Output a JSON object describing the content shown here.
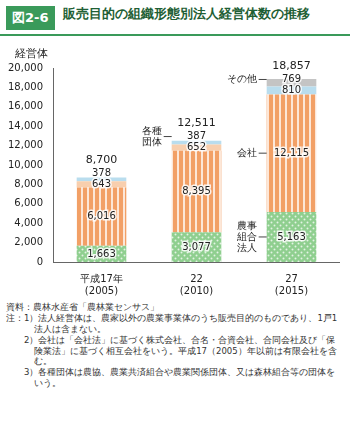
{
  "chart_data": {
    "type": "bar",
    "figure_label": "図2-6",
    "title": "販売目的の組織形態別法人経営体数の推移",
    "y_label": "経営体",
    "categories": [
      "平成17年\n(2005)",
      "22\n(2010)",
      "27\n(2015)"
    ],
    "stacked": true,
    "grid": false,
    "data_labels": true,
    "series": [
      {
        "name": "農事組合法人",
        "color": "#8fcf8f",
        "values": [
          1663,
          3077,
          5163
        ],
        "value_labels": [
          "1,663",
          "3,077",
          "5,163"
        ]
      },
      {
        "name": "会社",
        "color": "#f2a066",
        "values": [
          6016,
          8395,
          12115
        ],
        "value_labels": [
          "6,016",
          "8,395",
          "12,115"
        ]
      },
      {
        "name": "各種団体",
        "colors": [
          "#f8cfae",
          "#f8cfae",
          "#b9ddee"
        ],
        "values": [
          643,
          652,
          810
        ],
        "value_labels": [
          "643",
          "652",
          "810"
        ]
      },
      {
        "name": "その他",
        "colors": [
          "#b9ddee",
          "#b9ddee",
          "#c4c4c4"
        ],
        "values": [
          378,
          387,
          769
        ],
        "value_labels": [
          "378",
          "387",
          "769"
        ]
      }
    ],
    "totals": {
      "values": [
        8700,
        12511,
        18857
      ],
      "value_labels": [
        "8,700",
        "12,511",
        "18,857"
      ]
    },
    "annotations": [
      {
        "text": "各種\n団体",
        "series": "その他",
        "category": "22\n(2010)"
      },
      {
        "text": "その他",
        "series": "その他",
        "category": "27\n(2015)"
      },
      {
        "text": "会社",
        "series": "会社",
        "category": "27\n(2015)"
      },
      {
        "text": "農事\n組合\n法人",
        "series": "農事組合法人",
        "category": "27\n(2015)"
      }
    ],
    "ylim": [
      0,
      20000
    ],
    "yticks": [
      {
        "value": 0,
        "label": "0"
      },
      {
        "value": 2000,
        "label": "2,000"
      },
      {
        "value": 4000,
        "label": "4,000"
      },
      {
        "value": 6000,
        "label": "6,000"
      },
      {
        "value": 8000,
        "label": "8,000"
      },
      {
        "value": 10000,
        "label": "10,000"
      },
      {
        "value": 12000,
        "label": "12,000"
      },
      {
        "value": 14000,
        "label": "14,000"
      },
      {
        "value": 16000,
        "label": "16,000"
      },
      {
        "value": 18000,
        "label": "18,000"
      },
      {
        "value": 20000,
        "label": "20,000"
      }
    ],
    "source": "資料：農林水産省「農林業センサス」",
    "notes_heading": "注：",
    "notes": [
      "1）法人経営体は、農家以外の農業事業体のうち販売目的のものであり、1戸1法人は含まない。",
      "2）会社は「会社法」に基づく株式会社、合名・合資会社、合同会社及び「保険業法」に基づく相互会社をいう。平成17（2005）年以前は有限会社を含む。",
      "3）各種団体は農協、農業共済組合や農業関係団体、又は森林組合等の団体をいう。"
    ]
  }
}
